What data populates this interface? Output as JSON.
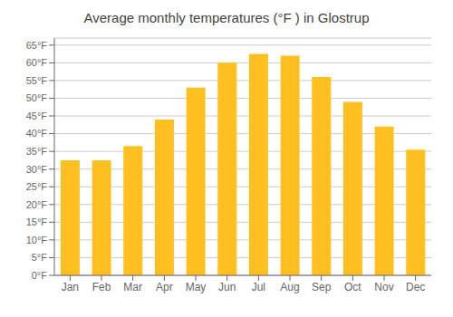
{
  "chart_data": {
    "type": "bar",
    "title": "Average monthly temperatures (°F ) in Glostrup",
    "categories": [
      "Jan",
      "Feb",
      "Mar",
      "Apr",
      "May",
      "Jun",
      "Jul",
      "Aug",
      "Sep",
      "Oct",
      "Nov",
      "Dec"
    ],
    "values": [
      32.5,
      32.5,
      36.5,
      44.0,
      53.0,
      60.0,
      62.5,
      62.0,
      56.0,
      49.0,
      42.0,
      35.5
    ],
    "color": "#FFC020",
    "ylim": [
      0,
      67
    ],
    "yticks": [
      {
        "value": 0,
        "label": "0°F"
      },
      {
        "value": 5,
        "label": "5°F"
      },
      {
        "value": 10,
        "label": "10°F"
      },
      {
        "value": 15,
        "label": "15°F"
      },
      {
        "value": 20,
        "label": "20°F"
      },
      {
        "value": 25,
        "label": "25°F"
      },
      {
        "value": 30,
        "label": "30°F"
      },
      {
        "value": 35,
        "label": "35°F"
      },
      {
        "value": 40,
        "label": "40°F"
      },
      {
        "value": 45,
        "label": "45°F"
      },
      {
        "value": 50,
        "label": "50°F"
      },
      {
        "value": 55,
        "label": "55°F"
      },
      {
        "value": 60,
        "label": "60°F"
      },
      {
        "value": 65,
        "label": "65°F"
      }
    ],
    "grid": true
  }
}
